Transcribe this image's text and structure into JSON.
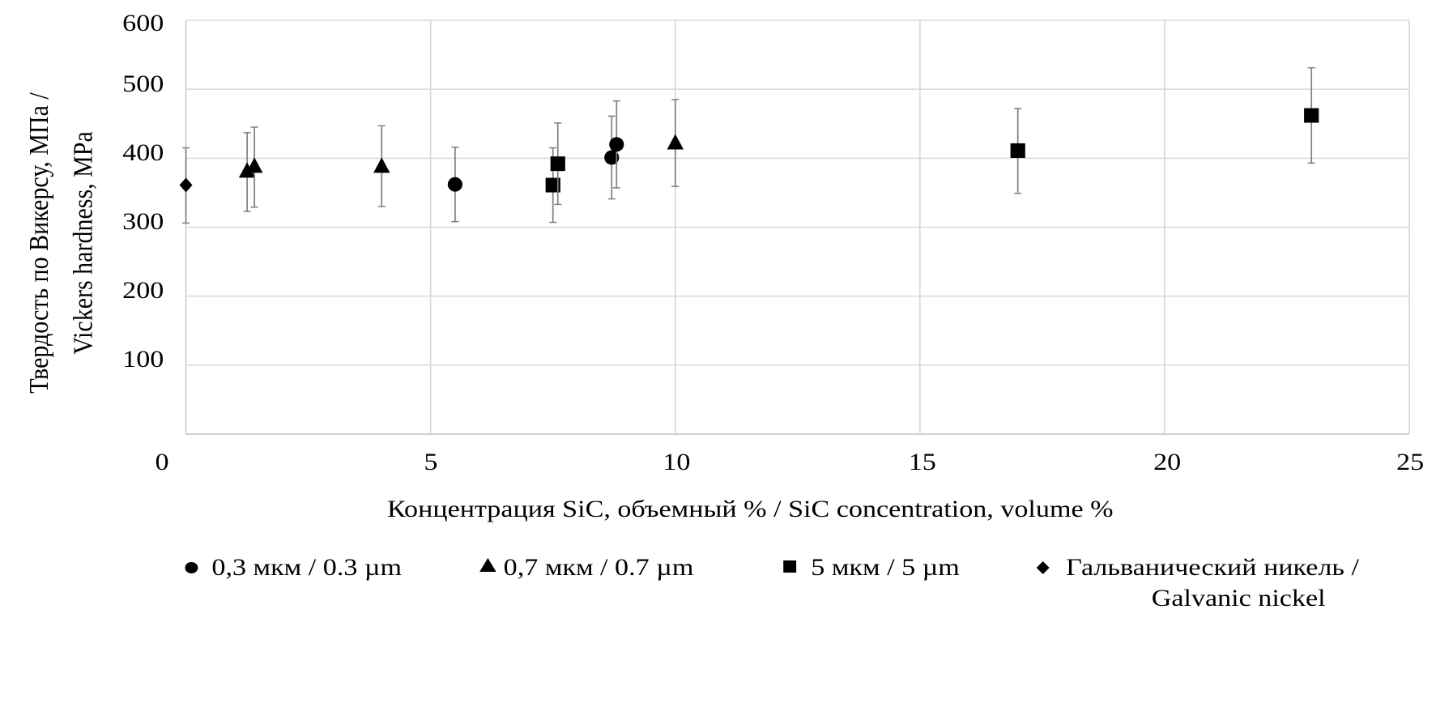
{
  "chart_data": {
    "type": "scatter",
    "title": "",
    "xlabel": "Концентрация SiC, объемный % / SiC concentration, volume %",
    "ylabel_lines": [
      "Твердость по Викерсу, МПа /",
      "Vickers hardness, MPa"
    ],
    "xlim": [
      0,
      25
    ],
    "ylim": [
      0,
      600
    ],
    "xticks": [
      "0",
      "5",
      "10",
      "15",
      "20",
      "25"
    ],
    "yticks": [
      "100",
      "200",
      "300",
      "400",
      "500",
      "600"
    ],
    "grid": true,
    "legend_position": "bottom",
    "error_bar_color": "#7f7f7f",
    "marker_color": "#000000",
    "series": [
      {
        "name": "0,3 мкм / 0.3 µm",
        "marker": "circle",
        "points": [
          {
            "x": 5.5,
            "y": 362,
            "err_high": 416,
            "err_low": 308
          },
          {
            "x": 8.7,
            "y": 401,
            "err_high": 461,
            "err_low": 341
          },
          {
            "x": 8.8,
            "y": 420,
            "err_high": 483,
            "err_low": 357
          }
        ]
      },
      {
        "name": "0,7 мкм / 0.7 µm",
        "marker": "triangle",
        "points": [
          {
            "x": 1.25,
            "y": 380,
            "err_high": 437,
            "err_low": 323
          },
          {
            "x": 1.4,
            "y": 387,
            "err_high": 445,
            "err_low": 329
          },
          {
            "x": 4.0,
            "y": 387,
            "err_high": 447,
            "err_low": 330
          },
          {
            "x": 10.0,
            "y": 421,
            "err_high": 485,
            "err_low": 359
          }
        ]
      },
      {
        "name": "5 мкм / 5 µm",
        "marker": "square",
        "points": [
          {
            "x": 7.5,
            "y": 361,
            "err_high": 415,
            "err_low": 307
          },
          {
            "x": 7.6,
            "y": 392,
            "err_high": 451,
            "err_low": 333
          },
          {
            "x": 17.0,
            "y": 411,
            "err_high": 472,
            "err_low": 349
          },
          {
            "x": 23.0,
            "y": 462,
            "err_high": 531,
            "err_low": 393
          }
        ]
      },
      {
        "name": "Гальванический никель / Galvanic nickel",
        "marker": "diamond",
        "legend_lines": [
          "Гальванический никель /",
          "Galvanic nickel"
        ],
        "points": [
          {
            "x": 0.0,
            "y": 361,
            "err_high": 415,
            "err_low": 306
          }
        ]
      }
    ]
  }
}
